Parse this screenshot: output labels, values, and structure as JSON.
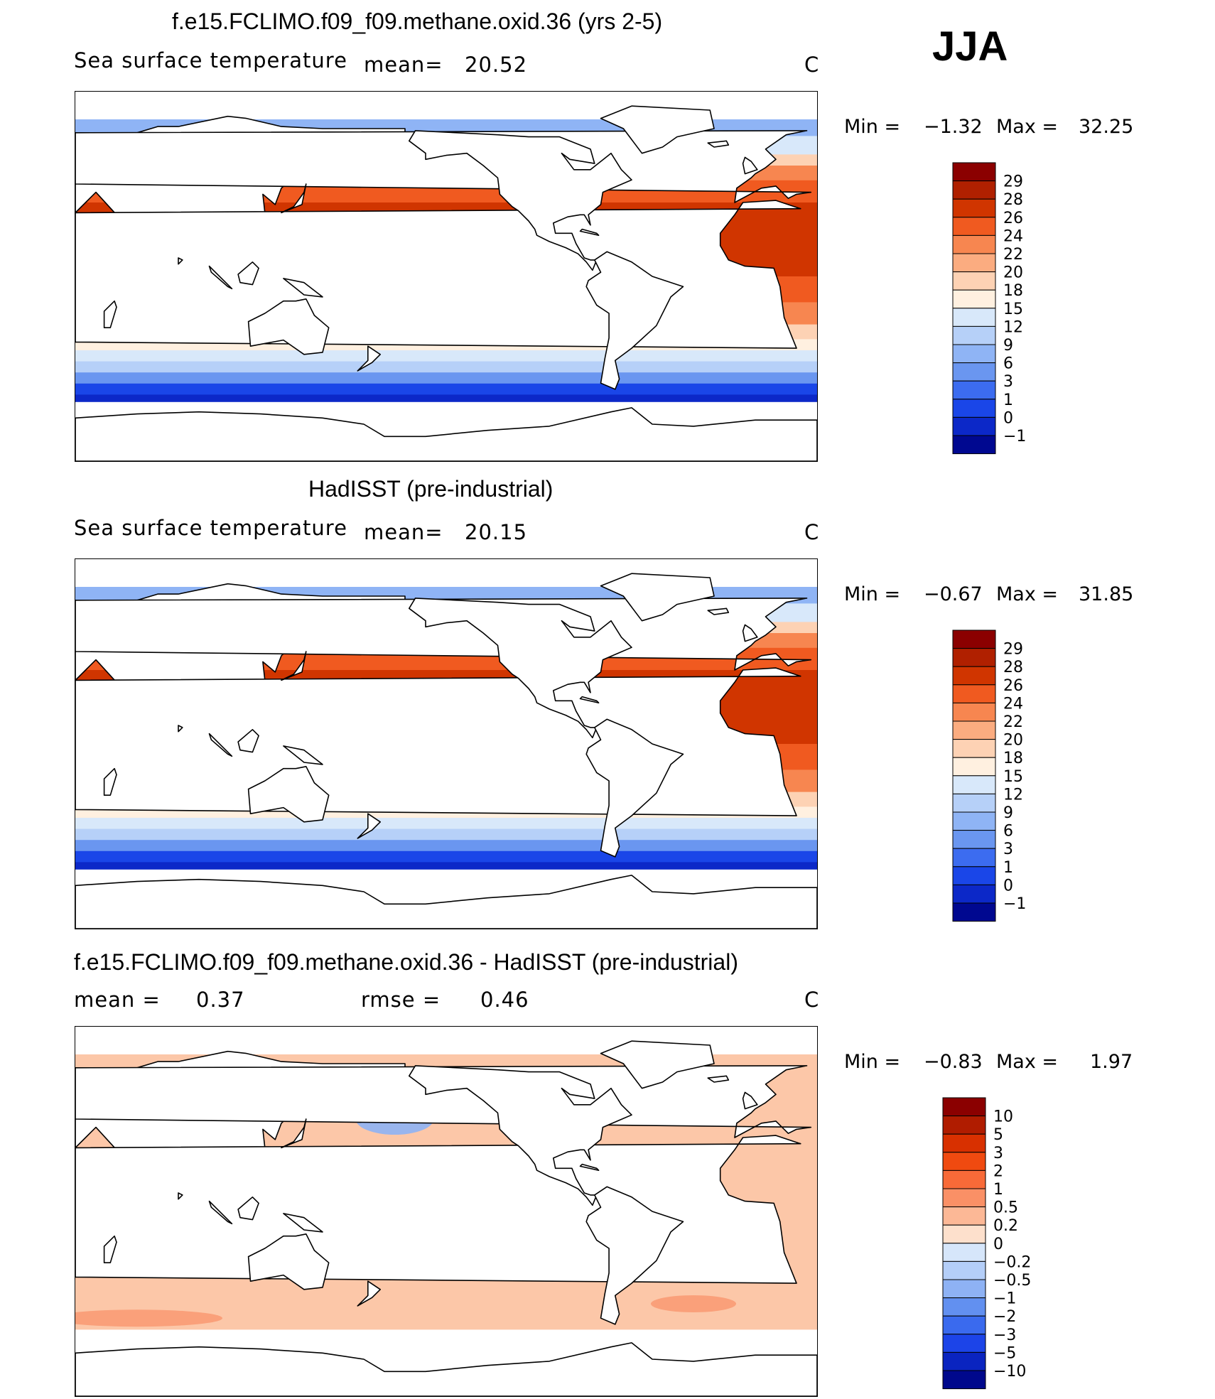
{
  "season": "JJA",
  "panels": [
    {
      "title": "f.e15.FCLIMO.f09_f09.methane.oxid.36 (yrs 2-5)",
      "variable": "Sea surface temperature",
      "stat_label": "mean=",
      "stat_value": "20.52",
      "units": "C",
      "minmax": {
        "min_label": "Min =",
        "min": "−1.32",
        "max_label": "Max =",
        "max": "32.25"
      }
    },
    {
      "title": "HadISST (pre-industrial)",
      "variable": "Sea surface temperature",
      "stat_label": "mean=",
      "stat_value": "20.15",
      "units": "C",
      "minmax": {
        "min_label": "Min =",
        "min": "−0.67",
        "max_label": "Max =",
        "max": "31.85"
      }
    },
    {
      "title": "f.e15.FCLIMO.f09_f09.methane.oxid.36 - HadISST (pre-industrial)",
      "stat_label": "mean =",
      "stat_value": "0.37",
      "rmse_label": "rmse =",
      "rmse_value": "0.46",
      "units": "C",
      "minmax": {
        "min_label": "Min =",
        "min": "−0.83",
        "max_label": "Max =",
        "max": "1.97"
      }
    }
  ],
  "chart_data": [
    {
      "type": "heatmap",
      "title": "f.e15.FCLIMO.f09_f09.methane.oxid.36 (yrs 2-5)",
      "subtitle": "Sea surface temperature",
      "units": "C",
      "mean": 20.52,
      "min": -1.32,
      "max": 32.25,
      "colorbar": {
        "labels": [
          "29",
          "28",
          "26",
          "24",
          "22",
          "20",
          "18",
          "15",
          "12",
          "9",
          "6",
          "3",
          "1",
          "0",
          "−1"
        ],
        "colors": [
          "#8b0000",
          "#b02000",
          "#d03500",
          "#f05a20",
          "#f78650",
          "#fbac80",
          "#fdd2b4",
          "#fff0e0",
          "#d8e8fa",
          "#b6d0f8",
          "#8fb4f5",
          "#6a96f0",
          "#3c6cf0",
          "#1a46e8",
          "#0c28c8",
          "#000890"
        ]
      }
    },
    {
      "type": "heatmap",
      "title": "HadISST (pre-industrial)",
      "subtitle": "Sea surface temperature",
      "units": "C",
      "mean": 20.15,
      "min": -0.67,
      "max": 31.85,
      "colorbar": {
        "labels": [
          "29",
          "28",
          "26",
          "24",
          "22",
          "20",
          "18",
          "15",
          "12",
          "9",
          "6",
          "3",
          "1",
          "0",
          "−1"
        ],
        "colors": [
          "#8b0000",
          "#b02000",
          "#d03500",
          "#f05a20",
          "#f78650",
          "#fbac80",
          "#fdd2b4",
          "#fff0e0",
          "#d8e8fa",
          "#b6d0f8",
          "#8fb4f5",
          "#6a96f0",
          "#3c6cf0",
          "#1a46e8",
          "#0c28c8",
          "#000890"
        ]
      }
    },
    {
      "type": "heatmap",
      "title": "f.e15.FCLIMO.f09_f09.methane.oxid.36 - HadISST (pre-industrial)",
      "units": "C",
      "mean": 0.37,
      "rmse": 0.46,
      "min": -0.83,
      "max": 1.97,
      "colorbar": {
        "labels": [
          "10",
          "5",
          "3",
          "2",
          "1",
          "0.5",
          "0.2",
          "0",
          "−0.2",
          "−0.5",
          "−1",
          "−2",
          "−3",
          "−5",
          "−10"
        ],
        "colors": [
          "#8b0000",
          "#b01c00",
          "#d83000",
          "#f04a10",
          "#f86a38",
          "#fa9066",
          "#fcb896",
          "#fde0cc",
          "#d6e6fa",
          "#b4cef8",
          "#8eb2f4",
          "#6290f0",
          "#3a6aee",
          "#1c44e8",
          "#0a24c0",
          "#00088c"
        ]
      }
    }
  ]
}
